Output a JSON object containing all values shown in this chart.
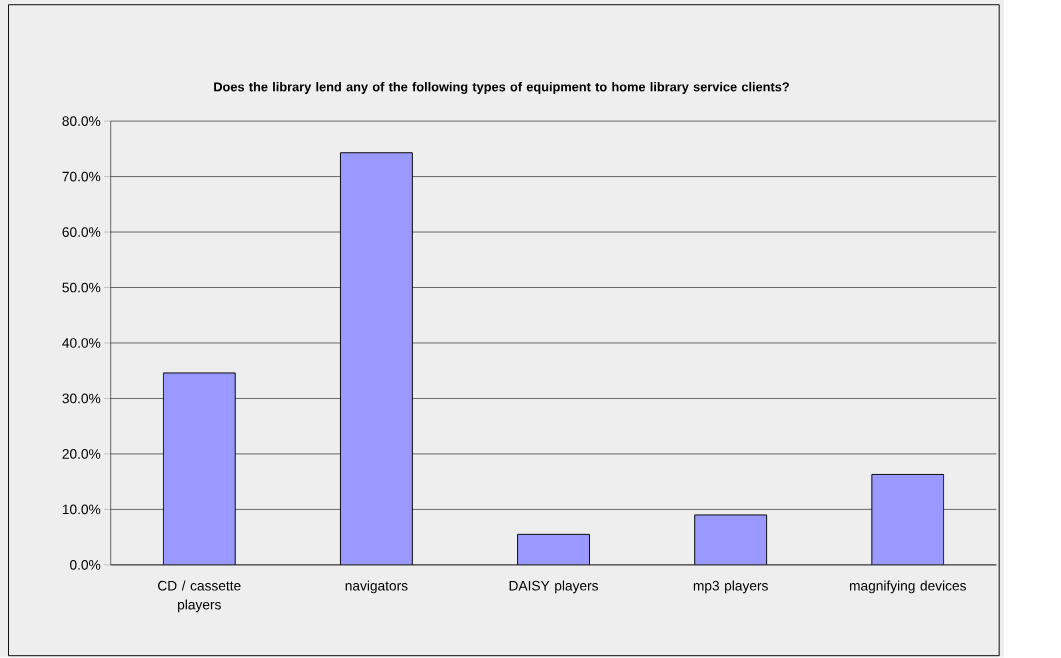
{
  "chart_data": {
    "type": "bar",
    "title": "Does the library lend any of the following types of equipment to home library service clients?",
    "categories": [
      "CD / cassette players",
      "navigators",
      "DAISY players",
      "mp3 players",
      "magnifying devices"
    ],
    "values": [
      34.6,
      74.3,
      5.5,
      9.0,
      16.3
    ],
    "color": "#9999ff",
    "ylim": [
      0,
      80
    ],
    "yticks": [
      {
        "value": 0,
        "label": "0.0%"
      },
      {
        "value": 10,
        "label": "10.0%"
      },
      {
        "value": 20,
        "label": "20.0%"
      },
      {
        "value": 30,
        "label": "30.0%"
      },
      {
        "value": 40,
        "label": "40.0%"
      },
      {
        "value": 50,
        "label": "50.0%"
      },
      {
        "value": 60,
        "label": "60.0%"
      },
      {
        "value": 70,
        "label": "70.0%"
      },
      {
        "value": 80,
        "label": "80.0%"
      }
    ],
    "grid": "y"
  }
}
